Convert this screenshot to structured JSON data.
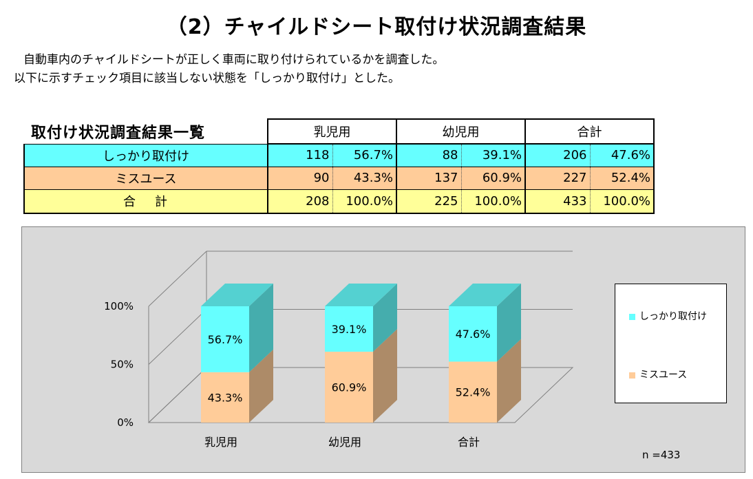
{
  "page": {
    "title": "（2）チャイルドシート取付け状況調査結果",
    "description_line1": "自動車内のチャイルドシートが正しく車両に取り付けられているかを調査した。",
    "description_line2": "以下に示すチェック項目に該当しない状態を「しっかり取付け」とした。"
  },
  "table": {
    "heading": "取付け状況調査結果一覧",
    "columns": [
      "乳児用",
      "幼児用",
      "合計"
    ],
    "rows": [
      {
        "label": "しっかり取付け",
        "cells": [
          [
            "118",
            "56.7%"
          ],
          [
            "88",
            "39.1%"
          ],
          [
            "206",
            "47.6%"
          ]
        ]
      },
      {
        "label": "ミスユース",
        "cells": [
          [
            "90",
            "43.3%"
          ],
          [
            "137",
            "60.9%"
          ],
          [
            "227",
            "52.4%"
          ]
        ]
      },
      {
        "label": "合計",
        "cells": [
          [
            "208",
            "100.0%"
          ],
          [
            "225",
            "100.0%"
          ],
          [
            "433",
            "100.0%"
          ]
        ]
      }
    ]
  },
  "chart_data": {
    "type": "bar",
    "stacked": true,
    "percent": true,
    "three_d": true,
    "categories": [
      "乳児用",
      "幼児用",
      "合計"
    ],
    "series": [
      {
        "name": "ミスユース",
        "values": [
          43.3,
          60.9,
          52.4
        ],
        "labels": [
          "43.3%",
          "60.9%",
          "52.4%"
        ],
        "color": "#ffcc99"
      },
      {
        "name": "しっかり取付け",
        "values": [
          56.7,
          39.1,
          47.6
        ],
        "labels": [
          "56.7%",
          "39.1%",
          "47.6%"
        ],
        "color": "#66ffff"
      }
    ],
    "ylim": [
      0,
      100
    ],
    "yticks": [
      {
        "value": 0,
        "label": "0%"
      },
      {
        "value": 50,
        "label": "50%"
      },
      {
        "value": 100,
        "label": "100%"
      }
    ],
    "grid": true,
    "legend_position": "right",
    "note": "n =433",
    "colors": {
      "background": "#d9d9d9",
      "legend_bg": "#ffffff"
    }
  }
}
